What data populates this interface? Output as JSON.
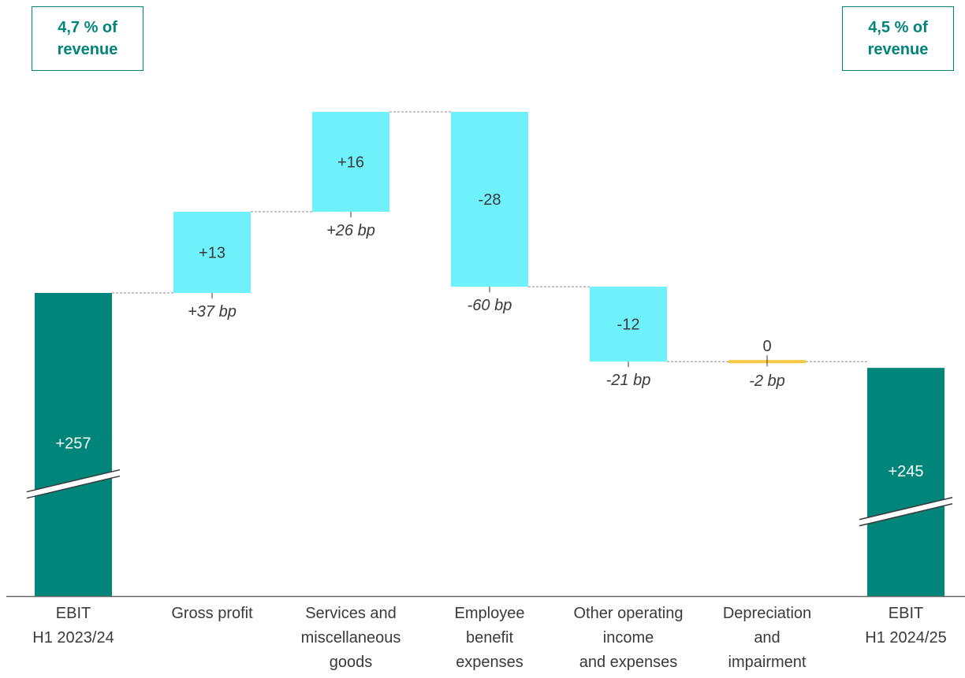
{
  "callouts": {
    "left": {
      "line1": "4,7 % of",
      "line2": "revenue"
    },
    "right": {
      "line1": "4,5 % of",
      "line2": "revenue"
    }
  },
  "colors": {
    "total": "#00857a",
    "increase": "#6ef1fb",
    "decrease": "#6ef1fb",
    "zero": "#f5c842",
    "connector": "#8a8a8a",
    "axis": "#666666",
    "text": "#3a3a3a"
  },
  "chart_data": {
    "type": "waterfall",
    "categories": [
      [
        "EBIT",
        "H1 2023/24"
      ],
      [
        "Gross profit"
      ],
      [
        "Services and",
        "miscellaneous",
        "goods"
      ],
      [
        "Employee",
        "benefit",
        "expenses"
      ],
      [
        "Other operating",
        "income",
        "and expenses"
      ],
      [
        "Depreciation",
        "and",
        "impairment"
      ],
      [
        "EBIT",
        "H1 2024/25"
      ]
    ],
    "kinds": [
      "total",
      "delta",
      "delta",
      "delta",
      "delta",
      "delta",
      "total"
    ],
    "values": [
      257,
      13,
      16,
      -28,
      -12,
      0,
      245
    ],
    "value_labels": [
      "+257",
      "+13",
      "+16",
      "-28",
      "-12",
      "0",
      "+245"
    ],
    "bp_labels": [
      "",
      "+37 bp",
      "+26 bp",
      "-60 bp",
      "-21 bp",
      "-2 bp",
      ""
    ],
    "axis_broken": true
  }
}
